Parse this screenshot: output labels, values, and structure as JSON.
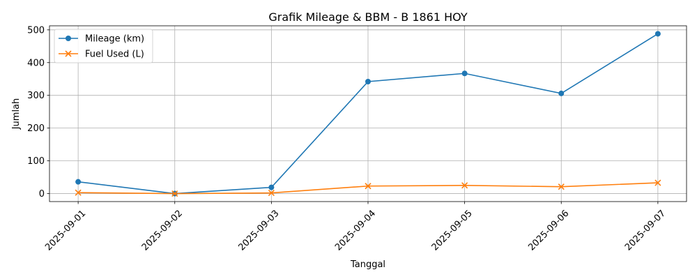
{
  "chart_data": {
    "type": "line",
    "title": "Grafik Mileage & BBM - B 1861 HOY",
    "xlabel": "Tanggal",
    "ylabel": "Jumlah",
    "categories": [
      "2025-09-01",
      "2025-09-02",
      "2025-09-03",
      "2025-09-04",
      "2025-09-05",
      "2025-09-06",
      "2025-09-07"
    ],
    "series": [
      {
        "name": "Mileage (km)",
        "marker": "circle",
        "color": "#1f77b4",
        "values": [
          36,
          0,
          19,
          342,
          367,
          306,
          488
        ]
      },
      {
        "name": "Fuel Used (L)",
        "marker": "x",
        "color": "#ff7f0e",
        "values": [
          3,
          0,
          2,
          23,
          25,
          21,
          33
        ]
      }
    ],
    "ylim": [
      -24.4,
      512.4
    ],
    "yticks": [
      0,
      100,
      200,
      300,
      400,
      500
    ],
    "grid": true,
    "legend_position": "upper left"
  }
}
